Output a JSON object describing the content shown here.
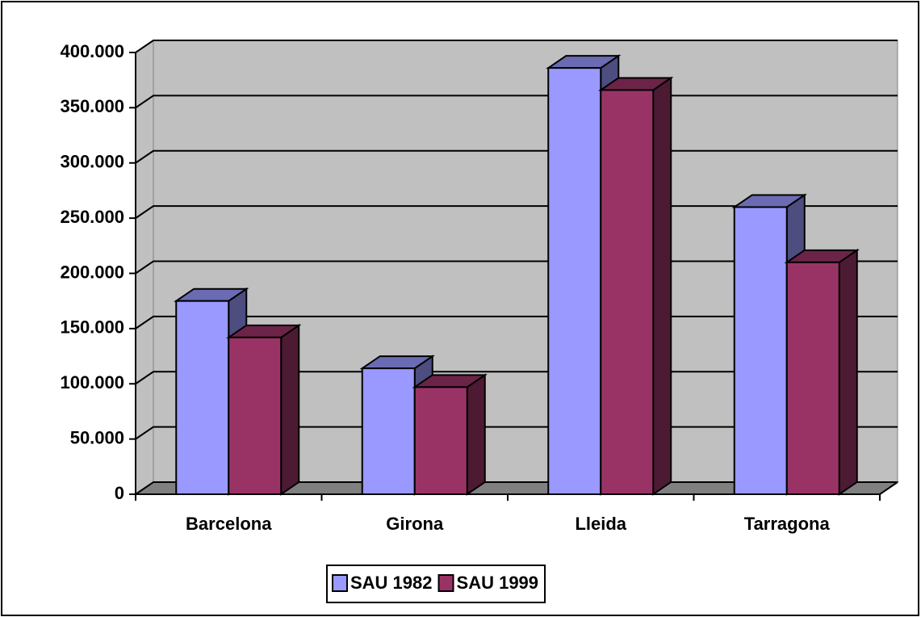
{
  "chart_data": {
    "type": "bar3d",
    "categories": [
      "Barcelona",
      "Girona",
      "Lleida",
      "Tarragona"
    ],
    "series": [
      {
        "name": "SAU 1982",
        "color": "#9999ff",
        "values": [
          175000,
          114000,
          386000,
          260000
        ]
      },
      {
        "name": "SAU 1999",
        "color": "#993366",
        "values": [
          142000,
          97000,
          366000,
          210000
        ]
      }
    ],
    "ylim": [
      0,
      400000
    ],
    "yticks": [
      0,
      {
        "value": 50000,
        "label": "50.000"
      },
      {
        "value": 100000,
        "label": "100.000"
      },
      {
        "value": 150000,
        "label": "150.000"
      },
      {
        "value": 200000,
        "label": "200.000"
      },
      {
        "value": 250000,
        "label": "250.000"
      },
      {
        "value": 300000,
        "label": "300.000"
      },
      {
        "value": 350000,
        "label": "350.000"
      },
      {
        "value": 400000,
        "label": "400.000"
      }
    ],
    "grid": true,
    "legend": "bottom"
  }
}
